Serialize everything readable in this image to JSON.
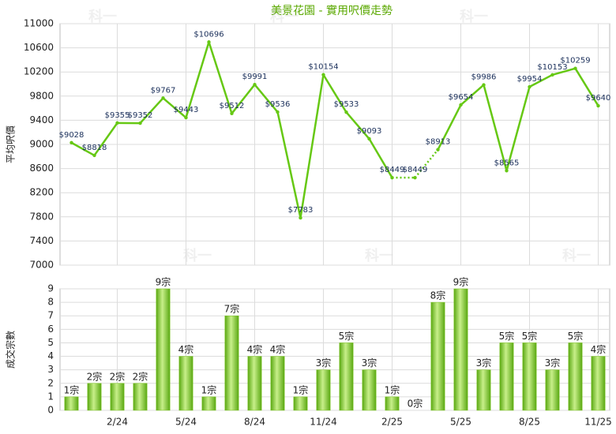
{
  "watermark": "科一",
  "chart_data": [
    {
      "type": "line",
      "title": "美景花園 - 實用呎價走勢",
      "ylabel": "平均呎價",
      "color": "#66c814",
      "values": [
        9028,
        8818,
        9355,
        9352,
        9767,
        9443,
        10696,
        9512,
        9991,
        9536,
        7783,
        10154,
        9533,
        9093,
        8449,
        8449,
        8913,
        9654,
        9986,
        8565,
        9954,
        10153,
        10259,
        9640
      ],
      "value_labels": [
        "$9028",
        "$8818",
        "$9355",
        "$9352",
        "$9767",
        "$9443",
        "$10696",
        "$9512",
        "$9991",
        "$9536",
        "$7783",
        "$10154",
        "$9533",
        "$9093",
        "$8449",
        "$8449",
        "$8913",
        "$9654",
        "$9986",
        "$8565",
        "$9954",
        "$10153",
        "$10259",
        "$9640"
      ],
      "ylim": [
        7000,
        11000
      ],
      "yticks": [
        7000,
        7400,
        7800,
        8200,
        8600,
        9000,
        9400,
        9800,
        10200,
        10600,
        11000
      ],
      "grid": true
    },
    {
      "type": "bar",
      "ylabel": "成交宗數",
      "color": "#7cc520",
      "categories": [
        null,
        null,
        "2/24",
        null,
        null,
        "5/24",
        null,
        null,
        "8/24",
        null,
        null,
        "11/24",
        null,
        null,
        "2/25",
        null,
        null,
        "5/25",
        null,
        null,
        "8/25",
        null,
        null,
        "11/25"
      ],
      "values": [
        1,
        2,
        2,
        2,
        9,
        4,
        1,
        7,
        4,
        4,
        1,
        3,
        5,
        3,
        1,
        0,
        8,
        9,
        3,
        5,
        5,
        3,
        5,
        4
      ],
      "value_labels": [
        "1宗",
        "2宗",
        "2宗",
        "2宗",
        "9宗",
        "4宗",
        "1宗",
        "7宗",
        "4宗",
        "4宗",
        "1宗",
        "3宗",
        "5宗",
        "3宗",
        "1宗",
        "0宗",
        "8宗",
        "9宗",
        "3宗",
        "5宗",
        "5宗",
        "3宗",
        "5宗",
        "4宗"
      ],
      "ylim": [
        0,
        9
      ],
      "yticks": [
        0,
        1,
        2,
        3,
        4,
        5,
        6,
        7,
        8,
        9
      ],
      "grid": true
    }
  ]
}
